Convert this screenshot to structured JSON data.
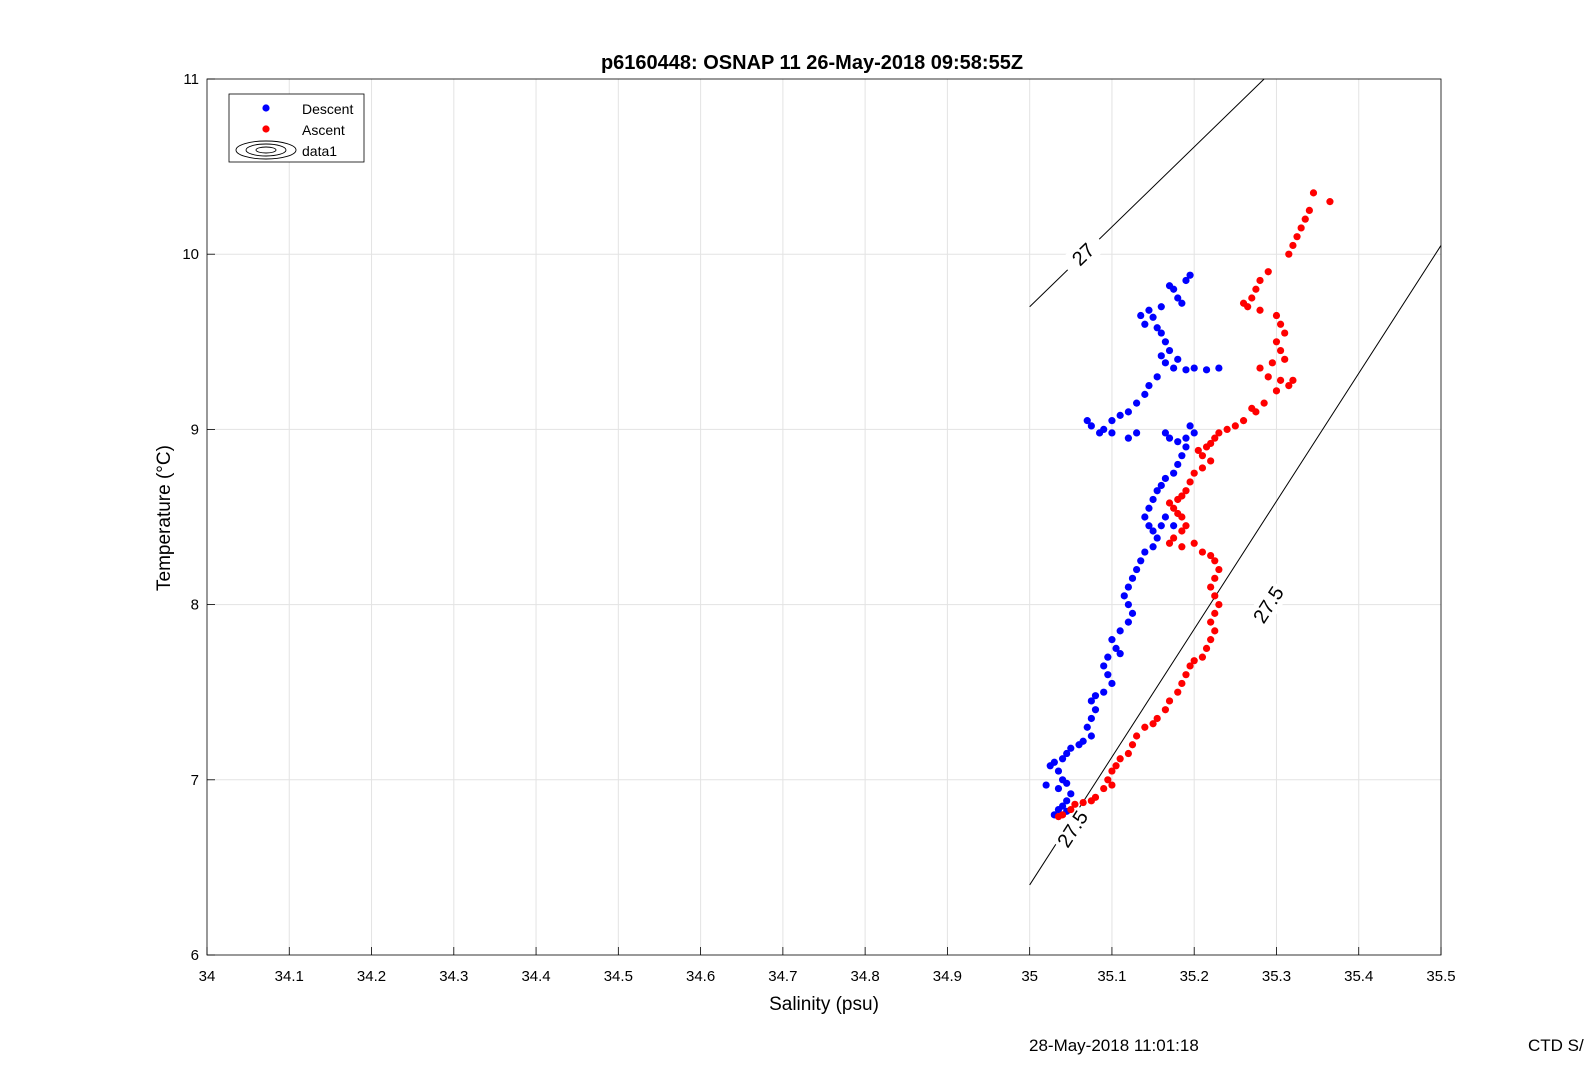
{
  "chart_data": {
    "type": "scatter",
    "title": "p6160448: OSNAP 11 26-May-2018 09:58:55Z",
    "xlabel": "Salinity (psu)",
    "ylabel": "Temperature (°C)",
    "xlim": [
      34,
      35.5
    ],
    "ylim": [
      6,
      11
    ],
    "xticks": [
      "34",
      "34.1",
      "34.2",
      "34.3",
      "34.4",
      "34.5",
      "34.6",
      "34.7",
      "34.8",
      "34.9",
      "35",
      "35.1",
      "35.2",
      "35.3",
      "35.4",
      "35.5"
    ],
    "yticks": [
      "6",
      "7",
      "8",
      "9",
      "10",
      "11"
    ],
    "grid": true,
    "legend_position": "top-left",
    "legend": [
      "Descent",
      "Ascent",
      "data1"
    ],
    "colors": {
      "Descent": "#0000ff",
      "Ascent": "#ff0000",
      "contour": "#000000",
      "grid": "#e3e3e3"
    },
    "series": [
      {
        "name": "Descent",
        "points": [
          [
            35.195,
            9.88
          ],
          [
            35.19,
            9.85
          ],
          [
            35.175,
            9.8
          ],
          [
            35.18,
            9.75
          ],
          [
            35.185,
            9.72
          ],
          [
            35.17,
            9.82
          ],
          [
            35.16,
            9.7
          ],
          [
            35.145,
            9.68
          ],
          [
            35.15,
            9.64
          ],
          [
            35.14,
            9.6
          ],
          [
            35.135,
            9.65
          ],
          [
            35.155,
            9.58
          ],
          [
            35.16,
            9.55
          ],
          [
            35.165,
            9.5
          ],
          [
            35.17,
            9.45
          ],
          [
            35.16,
            9.42
          ],
          [
            35.165,
            9.38
          ],
          [
            35.175,
            9.35
          ],
          [
            35.19,
            9.34
          ],
          [
            35.2,
            9.35
          ],
          [
            35.215,
            9.34
          ],
          [
            35.23,
            9.35
          ],
          [
            35.18,
            9.4
          ],
          [
            35.155,
            9.3
          ],
          [
            35.145,
            9.25
          ],
          [
            35.14,
            9.2
          ],
          [
            35.13,
            9.15
          ],
          [
            35.12,
            9.1
          ],
          [
            35.11,
            9.08
          ],
          [
            35.1,
            9.05
          ],
          [
            35.09,
            9.0
          ],
          [
            35.085,
            8.98
          ],
          [
            35.075,
            9.02
          ],
          [
            35.07,
            9.05
          ],
          [
            35.1,
            8.98
          ],
          [
            35.12,
            8.95
          ],
          [
            35.13,
            8.98
          ],
          [
            35.165,
            8.98
          ],
          [
            35.17,
            8.95
          ],
          [
            35.18,
            8.93
          ],
          [
            35.19,
            8.95
          ],
          [
            35.2,
            8.98
          ],
          [
            35.195,
            9.02
          ],
          [
            35.19,
            8.9
          ],
          [
            35.185,
            8.85
          ],
          [
            35.18,
            8.8
          ],
          [
            35.175,
            8.75
          ],
          [
            35.165,
            8.72
          ],
          [
            35.16,
            8.68
          ],
          [
            35.155,
            8.65
          ],
          [
            35.15,
            8.6
          ],
          [
            35.145,
            8.55
          ],
          [
            35.14,
            8.5
          ],
          [
            35.145,
            8.45
          ],
          [
            35.15,
            8.42
          ],
          [
            35.16,
            8.45
          ],
          [
            35.165,
            8.5
          ],
          [
            35.175,
            8.45
          ],
          [
            35.155,
            8.38
          ],
          [
            35.15,
            8.33
          ],
          [
            35.14,
            8.3
          ],
          [
            35.135,
            8.25
          ],
          [
            35.13,
            8.2
          ],
          [
            35.125,
            8.15
          ],
          [
            35.12,
            8.1
          ],
          [
            35.115,
            8.05
          ],
          [
            35.12,
            8.0
          ],
          [
            35.125,
            7.95
          ],
          [
            35.12,
            7.9
          ],
          [
            35.11,
            7.85
          ],
          [
            35.1,
            7.8
          ],
          [
            35.105,
            7.75
          ],
          [
            35.11,
            7.72
          ],
          [
            35.095,
            7.7
          ],
          [
            35.09,
            7.65
          ],
          [
            35.095,
            7.6
          ],
          [
            35.1,
            7.55
          ],
          [
            35.09,
            7.5
          ],
          [
            35.08,
            7.48
          ],
          [
            35.075,
            7.45
          ],
          [
            35.08,
            7.4
          ],
          [
            35.075,
            7.35
          ],
          [
            35.07,
            7.3
          ],
          [
            35.075,
            7.25
          ],
          [
            35.065,
            7.22
          ],
          [
            35.06,
            7.2
          ],
          [
            35.05,
            7.18
          ],
          [
            35.045,
            7.15
          ],
          [
            35.04,
            7.12
          ],
          [
            35.03,
            7.1
          ],
          [
            35.025,
            7.08
          ],
          [
            35.035,
            7.05
          ],
          [
            35.04,
            7.0
          ],
          [
            35.045,
            6.98
          ],
          [
            35.035,
            6.95
          ],
          [
            35.02,
            6.97
          ],
          [
            35.05,
            6.92
          ],
          [
            35.045,
            6.88
          ],
          [
            35.04,
            6.85
          ],
          [
            35.035,
            6.83
          ],
          [
            35.045,
            6.82
          ],
          [
            35.03,
            6.8
          ]
        ]
      },
      {
        "name": "Ascent",
        "points": [
          [
            35.345,
            10.35
          ],
          [
            35.365,
            10.3
          ],
          [
            35.34,
            10.25
          ],
          [
            35.335,
            10.2
          ],
          [
            35.33,
            10.15
          ],
          [
            35.325,
            10.1
          ],
          [
            35.32,
            10.05
          ],
          [
            35.315,
            10.0
          ],
          [
            35.29,
            9.9
          ],
          [
            35.28,
            9.85
          ],
          [
            35.275,
            9.8
          ],
          [
            35.27,
            9.75
          ],
          [
            35.265,
            9.7
          ],
          [
            35.26,
            9.72
          ],
          [
            35.28,
            9.68
          ],
          [
            35.3,
            9.65
          ],
          [
            35.305,
            9.6
          ],
          [
            35.31,
            9.55
          ],
          [
            35.3,
            9.5
          ],
          [
            35.305,
            9.45
          ],
          [
            35.31,
            9.4
          ],
          [
            35.295,
            9.38
          ],
          [
            35.28,
            9.35
          ],
          [
            35.29,
            9.3
          ],
          [
            35.305,
            9.28
          ],
          [
            35.315,
            9.25
          ],
          [
            35.32,
            9.28
          ],
          [
            35.3,
            9.22
          ],
          [
            35.285,
            9.15
          ],
          [
            35.275,
            9.1
          ],
          [
            35.27,
            9.12
          ],
          [
            35.26,
            9.05
          ],
          [
            35.25,
            9.02
          ],
          [
            35.24,
            9.0
          ],
          [
            35.23,
            8.98
          ],
          [
            35.225,
            8.95
          ],
          [
            35.22,
            8.92
          ],
          [
            35.215,
            8.9
          ],
          [
            35.205,
            8.88
          ],
          [
            35.21,
            8.85
          ],
          [
            35.22,
            8.82
          ],
          [
            35.21,
            8.78
          ],
          [
            35.2,
            8.75
          ],
          [
            35.195,
            8.7
          ],
          [
            35.19,
            8.65
          ],
          [
            35.185,
            8.62
          ],
          [
            35.18,
            8.6
          ],
          [
            35.17,
            8.58
          ],
          [
            35.175,
            8.55
          ],
          [
            35.18,
            8.52
          ],
          [
            35.185,
            8.5
          ],
          [
            35.19,
            8.45
          ],
          [
            35.185,
            8.42
          ],
          [
            35.175,
            8.38
          ],
          [
            35.17,
            8.35
          ],
          [
            35.185,
            8.33
          ],
          [
            35.2,
            8.35
          ],
          [
            35.21,
            8.3
          ],
          [
            35.22,
            8.28
          ],
          [
            35.225,
            8.25
          ],
          [
            35.23,
            8.2
          ],
          [
            35.225,
            8.15
          ],
          [
            35.22,
            8.1
          ],
          [
            35.225,
            8.05
          ],
          [
            35.23,
            8.0
          ],
          [
            35.225,
            7.95
          ],
          [
            35.22,
            7.9
          ],
          [
            35.225,
            7.85
          ],
          [
            35.22,
            7.8
          ],
          [
            35.215,
            7.75
          ],
          [
            35.21,
            7.7
          ],
          [
            35.2,
            7.68
          ],
          [
            35.195,
            7.65
          ],
          [
            35.19,
            7.6
          ],
          [
            35.185,
            7.55
          ],
          [
            35.18,
            7.5
          ],
          [
            35.17,
            7.45
          ],
          [
            35.165,
            7.4
          ],
          [
            35.155,
            7.35
          ],
          [
            35.15,
            7.32
          ],
          [
            35.14,
            7.3
          ],
          [
            35.13,
            7.25
          ],
          [
            35.125,
            7.2
          ],
          [
            35.12,
            7.15
          ],
          [
            35.11,
            7.12
          ],
          [
            35.105,
            7.08
          ],
          [
            35.1,
            7.05
          ],
          [
            35.095,
            7.0
          ],
          [
            35.1,
            6.97
          ],
          [
            35.09,
            6.95
          ],
          [
            35.08,
            6.9
          ],
          [
            35.075,
            6.88
          ],
          [
            35.065,
            6.87
          ],
          [
            35.055,
            6.86
          ],
          [
            35.05,
            6.83
          ],
          [
            35.04,
            6.8
          ],
          [
            35.035,
            6.79
          ]
        ]
      }
    ],
    "contours": [
      {
        "label": "27",
        "start": [
          35.0,
          9.7
        ],
        "end": [
          35.285,
          11.0
        ],
        "label_at": [
          35.065,
          10.0
        ]
      },
      {
        "label": "27.5",
        "start": [
          35.0,
          6.4
        ],
        "end": [
          35.5,
          10.05
        ],
        "label_at": [
          35.29,
          8.0
        ],
        "label2_at": [
          35.052,
          6.72
        ]
      }
    ]
  },
  "footer": {
    "timestamp": "28-May-2018 11:01:18",
    "right_label": "CTD S/"
  }
}
